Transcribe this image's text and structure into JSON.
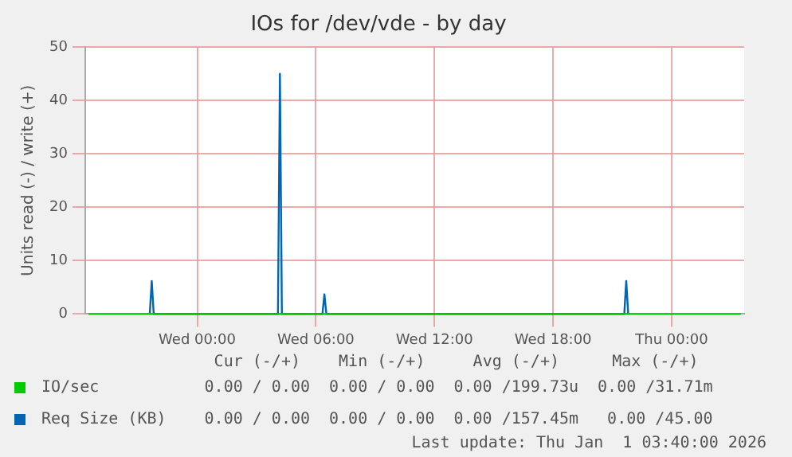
{
  "chart_data": {
    "type": "line",
    "title": "IOs for /dev/vde - by day",
    "ylabel": "Units read (-) / write (+)",
    "xlim": [
      "2025-12-30T18:20",
      "2026-01-01T03:40"
    ],
    "xticks": [
      {
        "value": "2025-12-31T00:00",
        "label": "Wed 00:00"
      },
      {
        "value": "2025-12-31T06:00",
        "label": "Wed 06:00"
      },
      {
        "value": "2025-12-31T12:00",
        "label": "Wed 12:00"
      },
      {
        "value": "2025-12-31T18:00",
        "label": "Wed 18:00"
      },
      {
        "value": "2026-01-01T00:00",
        "label": "Thu 00:00"
      }
    ],
    "ylim": [
      0,
      50
    ],
    "yticks": [
      0,
      10,
      20,
      30,
      40,
      50
    ],
    "grid": true,
    "legend": "bottom",
    "marker": "none",
    "line_style": "solid",
    "series": [
      {
        "name": "IO/sec",
        "color": "#00cc00",
        "x": [
          "2025-12-30T18:30",
          "2026-01-01T03:30"
        ],
        "values": [
          0,
          0
        ]
      },
      {
        "name": "Req Size (KB)",
        "color": "#0066b3",
        "x": [
          "2025-12-30T21:36",
          "2025-12-30T21:42",
          "2025-12-30T21:48",
          "2025-12-31T04:05",
          "2025-12-31T04:11",
          "2025-12-31T04:17",
          "2025-12-31T06:20",
          "2025-12-31T06:26",
          "2025-12-31T06:32",
          "2025-12-31T21:36",
          "2025-12-31T21:42",
          "2025-12-31T21:48"
        ],
        "values": [
          0,
          6.2,
          0,
          0,
          45,
          0,
          0,
          3.7,
          0,
          0,
          6.2,
          0
        ]
      }
    ],
    "annotations": [
      "Cur (-/+)",
      "Min (-/+)",
      "Avg (-/+)",
      "Max (-/+)",
      "0.00 / 0.00",
      "0.00 / 0.00",
      "0.00 /199.73u",
      "0.00 /31.71m",
      "0.00 / 0.00",
      "0.00 / 0.00",
      "0.00 /157.45m",
      "0.00 /45.00",
      "Last update: Thu Jan  1 03:40:00 2026"
    ]
  }
}
